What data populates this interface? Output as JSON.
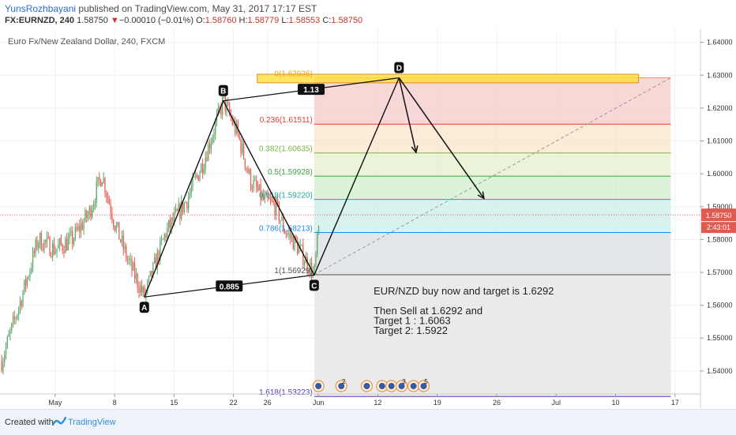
{
  "header": {
    "author": "YunsRozhbayani",
    "published": "published on TradingView.com, May 31, 2017 17:17 EST",
    "symbol": "FX:EURNZD, 240",
    "price": "1.58750",
    "change": "−0.00010 (−0.01%)",
    "open_label": "O:",
    "open": "1.58760",
    "high_label": "H:",
    "high": "1.58779",
    "low_label": "L:",
    "low": "1.58553",
    "close_label": "C:",
    "close": "1.58750"
  },
  "chart_data": {
    "type": "candlestick",
    "title": "Euro Fx/New Zealand Dollar, 240, FXCM",
    "ylim": [
      1.533,
      1.644
    ],
    "yticks": [
      "1.64000",
      "1.63000",
      "1.62000",
      "1.61000",
      "1.60000",
      "1.59000",
      "1.58000",
      "1.57000",
      "1.56000",
      "1.55000",
      "1.54000"
    ],
    "ytick_values": [
      1.64,
      1.63,
      1.62,
      1.61,
      1.6,
      1.59,
      1.58,
      1.57,
      1.56,
      1.55,
      1.54
    ],
    "x_labels": [
      "May",
      "8",
      "15",
      "22",
      "26",
      "Jun",
      "12",
      "19",
      "26",
      "Jul",
      "10",
      "17"
    ],
    "x_positions": [
      0,
      7,
      14,
      21,
      25,
      31,
      38,
      45,
      52,
      59,
      66,
      73
    ],
    "xlim": [
      -6.5,
      76
    ],
    "current_price": 1.5875,
    "current_price_label": "1.58750",
    "countdown": "2:43:01",
    "pattern_points": [
      {
        "label": "A",
        "x": 10.5,
        "y": 1.5625
      },
      {
        "label": "B",
        "x": 19.8,
        "y": 1.6222
      },
      {
        "label": "C",
        "x": 30.5,
        "y": 1.5692
      },
      {
        "label": "D",
        "x": 40.5,
        "y": 1.6292
      }
    ],
    "ratios": [
      {
        "label": "0.885",
        "x1": 10.5,
        "x2": 30.5,
        "y1": 1.5625,
        "y2": 1.5692
      },
      {
        "label": "1.13",
        "x1": 19.8,
        "x2": 40.5,
        "y1": 1.6222,
        "y2": 1.6292
      }
    ],
    "fib_levels": [
      {
        "ratio": 0,
        "value": 1.62926,
        "label": "0(1.62926)",
        "color": "#f2a30f"
      },
      {
        "ratio": 0.236,
        "value": 1.61511,
        "label": "0.236(1.61511)",
        "color": "#e53935"
      },
      {
        "ratio": 0.382,
        "value": 1.60635,
        "label": "0.382(1.60635)",
        "color": "#7cb342"
      },
      {
        "ratio": 0.5,
        "value": 1.59928,
        "label": "0.5(1.59928)",
        "color": "#43a047"
      },
      {
        "ratio": 0.618,
        "value": 1.5922,
        "label": "0.618(1.59220)",
        "color": "#26a69a"
      },
      {
        "ratio": 0.786,
        "value": 1.58213,
        "label": "0.786(1.58213)",
        "color": "#1e88e5"
      },
      {
        "ratio": 1,
        "value": 1.56929,
        "label": "1(1.56929)",
        "color": "#555555"
      },
      {
        "ratio": 1.618,
        "value": 1.53223,
        "label": "1.618(1.53223)",
        "color": "#5e35b1"
      }
    ],
    "fib_x": [
      30.5,
      72.5
    ],
    "zone_fills": [
      "#f5c6c6",
      "#f9e3c6",
      "#e3f0c8",
      "#cdecc9",
      "#c7ede9",
      "#d8dde0",
      "#e3e3e3",
      "#d2d2f5"
    ],
    "highlight_box": {
      "x1": 23.8,
      "x2": 68.7,
      "y1": 1.6303,
      "y2": 1.6277
    },
    "arrows": [
      {
        "x1": 40.5,
        "y1": 1.6292,
        "x2": 42.5,
        "y2": 1.6065
      },
      {
        "x1": 40.5,
        "y1": 1.6292,
        "x2": 50.5,
        "y2": 1.5925
      }
    ],
    "dashed_line": {
      "x1": 30.5,
      "y1": 1.5693,
      "x2": 72.5,
      "y2": 1.6292
    },
    "annotation_lines": [
      "EUR/NZD buy now and target is 1.6292",
      "",
      "Then Sell at 1.6292 and",
      "Target 1 : 1.6063",
      "Target 2:  1.5922"
    ],
    "annotation_pos": {
      "x": 37.5,
      "y": 1.5633
    },
    "event_markers": [
      "",
      "2",
      "",
      "",
      "",
      "3",
      "",
      "5"
    ],
    "event_positions": [
      31.0,
      33.7,
      36.7,
      38.5,
      39.6,
      40.8,
      42.2,
      43.4
    ]
  },
  "footer": {
    "created": "Created with",
    "brand": "TradingView"
  },
  "colors": {
    "bull": "#5fa86c",
    "bear": "#ee5a52",
    "accent": "#2a6fd6",
    "bg": "#ffffff"
  }
}
